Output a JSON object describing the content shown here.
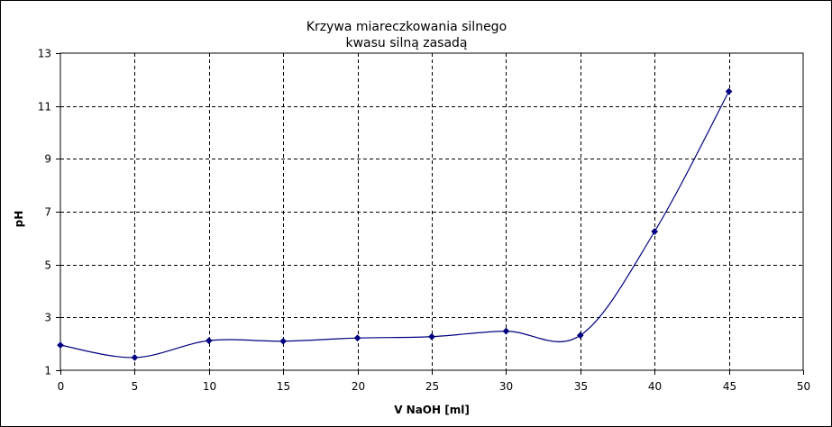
{
  "chart_data": {
    "type": "line",
    "title_lines": [
      "Krzywa miareczkowania silnego",
      "kwasu silną zasadą"
    ],
    "xlabel": "V NaOH [ml]",
    "ylabel": "pH",
    "xlim": [
      0,
      50
    ],
    "ylim": [
      1,
      13
    ],
    "x_ticks": [
      "0",
      "5",
      "10",
      "15",
      "20",
      "25",
      "30",
      "35",
      "40",
      "45",
      "50"
    ],
    "y_ticks": [
      "1",
      "3",
      "5",
      "7",
      "9",
      "11",
      "13"
    ],
    "grid": true,
    "legend": "none",
    "series": [
      {
        "x": [
          0,
          5,
          10,
          15,
          20,
          25,
          30,
          35,
          40,
          45
        ],
        "y": [
          1.95,
          1.48,
          2.12,
          2.1,
          2.22,
          2.27,
          2.48,
          2.32,
          6.25,
          11.55
        ],
        "color": "#000080",
        "marker": "diamond",
        "smooth": true
      }
    ],
    "background": "#ffffff",
    "grid_color": "#000000"
  }
}
